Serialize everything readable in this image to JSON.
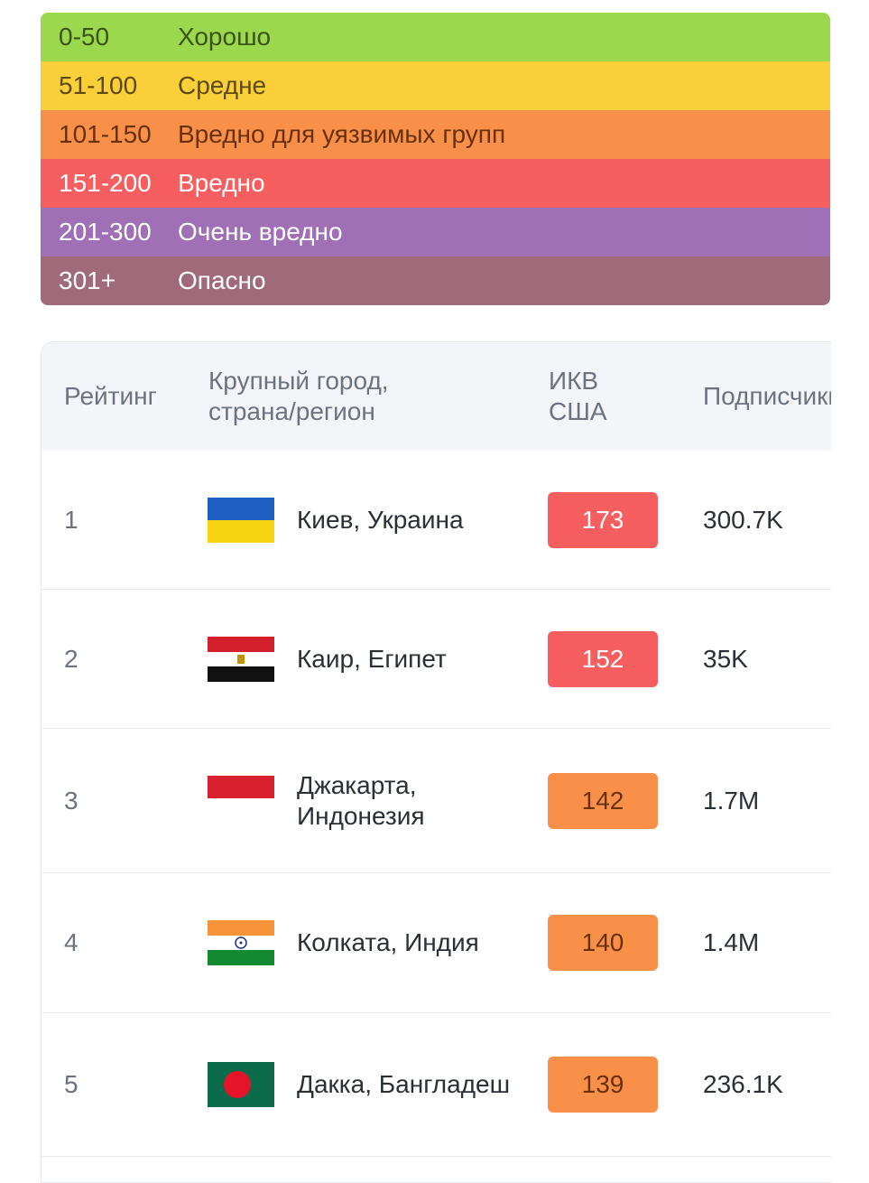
{
  "legend": [
    {
      "range": "0-50",
      "label": "Хорошо",
      "color": "#9cd84e"
    },
    {
      "range": "51-100",
      "label": "Средне",
      "color": "#facf39"
    },
    {
      "range": "101-150",
      "label": "Вредно для уязвимых групп",
      "color": "#f99049"
    },
    {
      "range": "151-200",
      "label": "Вредно",
      "color": "#f65e5f"
    },
    {
      "range": "201-300",
      "label": "Очень вредно",
      "color": "#a070b6"
    },
    {
      "range": "301+",
      "label": "Опасно",
      "color": "#a06a7b"
    }
  ],
  "table": {
    "headers": {
      "rank": "Рейтинг",
      "city": "Крупный город, страна/регион",
      "aqi": "ИКВ США",
      "followers": "Подписчики"
    },
    "rows": [
      {
        "rank": "1",
        "flag": "ukraine-flag-icon",
        "city": "Киев, Украина",
        "aqi": "173",
        "aqi_color": "#f65e5f",
        "aqi_text_color": "#ffffff",
        "followers": "300.7K"
      },
      {
        "rank": "2",
        "flag": "egypt-flag-icon",
        "city": "Каир, Египет",
        "aqi": "152",
        "aqi_color": "#f65e5f",
        "aqi_text_color": "#ffffff",
        "followers": "35K"
      },
      {
        "rank": "3",
        "flag": "indonesia-flag-icon",
        "city": "Джакарта, Индонезия",
        "aqi": "142",
        "aqi_color": "#f99049",
        "aqi_text_color": "#6a3009",
        "followers": "1.7M"
      },
      {
        "rank": "4",
        "flag": "india-flag-icon",
        "city": "Колката, Индия",
        "aqi": "140",
        "aqi_color": "#f99049",
        "aqi_text_color": "#6a3009",
        "followers": "1.4M"
      },
      {
        "rank": "5",
        "flag": "bangladesh-flag-icon",
        "city": "Дакка, Бангладеш",
        "aqi": "139",
        "aqi_color": "#f99049",
        "aqi_text_color": "#6a3009",
        "followers": "236.1K"
      }
    ]
  }
}
